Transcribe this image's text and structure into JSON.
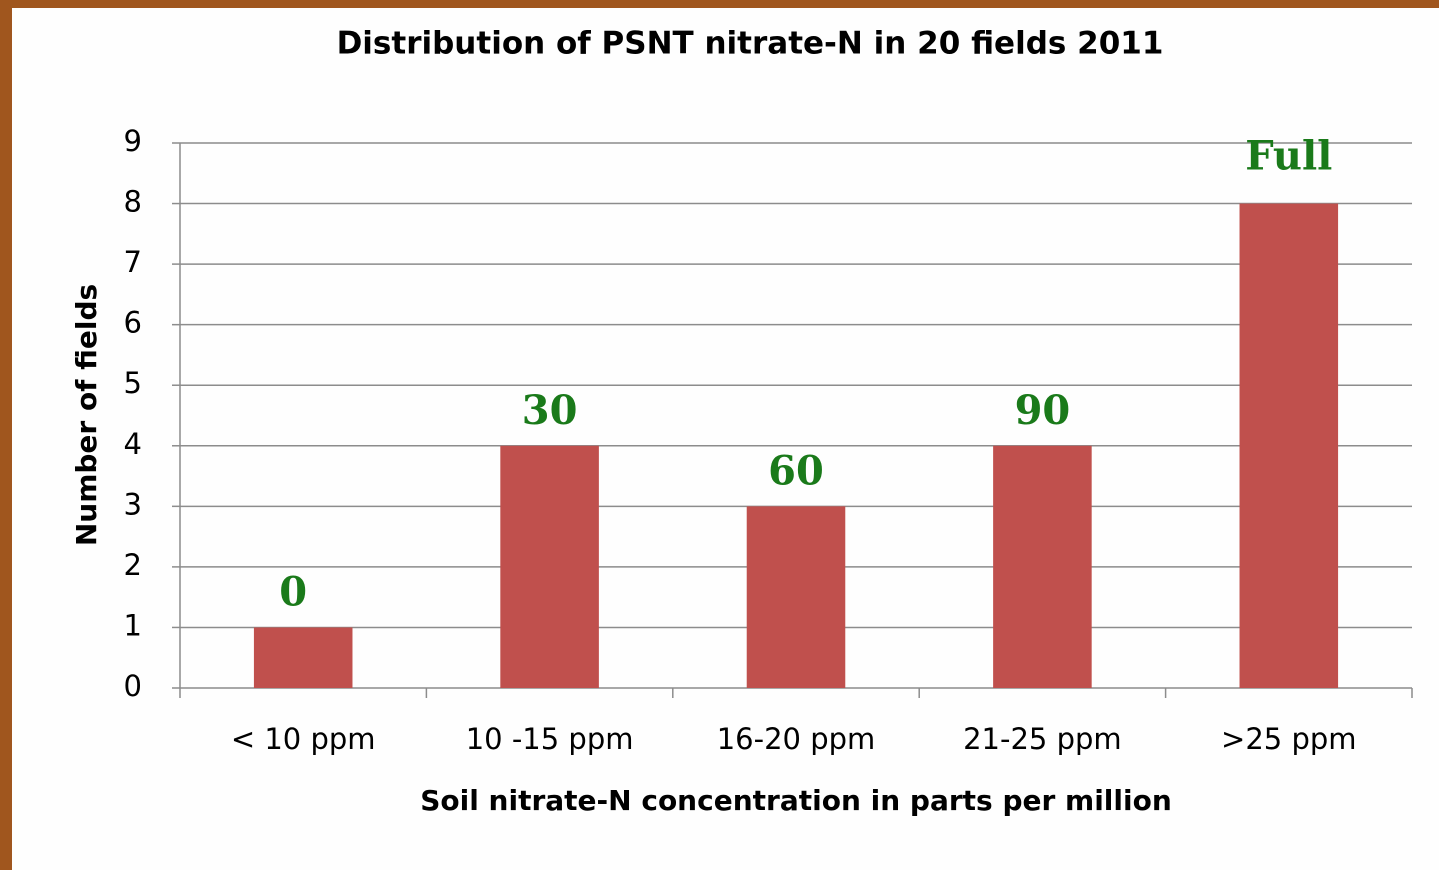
{
  "chart_data": {
    "type": "bar",
    "title": "Distribution of PSNT nitrate-N in 20 fields 2011",
    "x_label": "Soil nitrate-N concentration in parts per million",
    "y_label": "Number of fields",
    "categories": [
      "< 10 ppm",
      "10 -15 ppm",
      "16-20 ppm",
      "21-25 ppm",
      ">25 ppm"
    ],
    "values": [
      1,
      4,
      3,
      4,
      8
    ],
    "color": "#c0504d",
    "annotations": [
      "0",
      "30",
      "60",
      "90",
      "Full"
    ],
    "ylim": [
      0,
      9
    ],
    "yticks": [
      0,
      1,
      2,
      3,
      4,
      5,
      6,
      7,
      8,
      9
    ],
    "grid": true
  }
}
